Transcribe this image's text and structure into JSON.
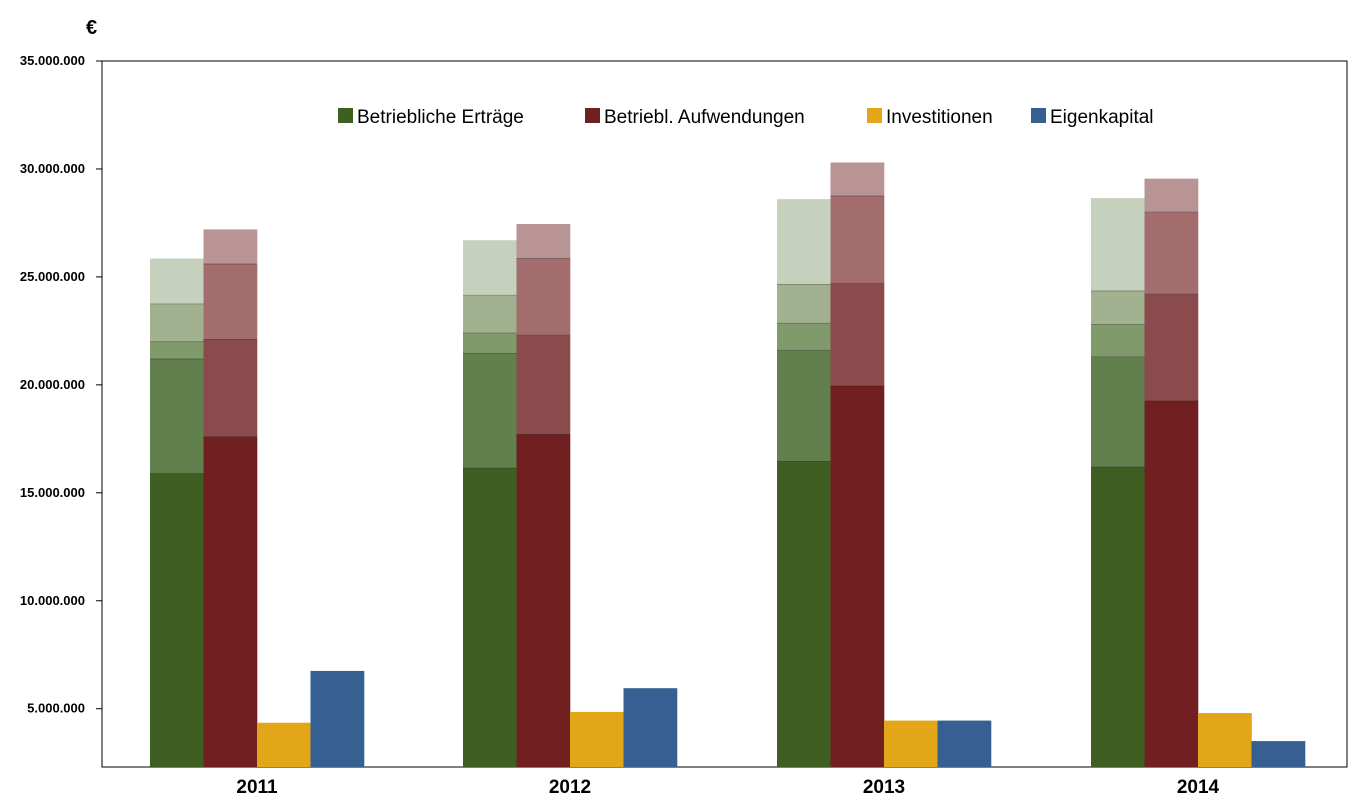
{
  "chart_data": {
    "type": "bar",
    "unit_label": "€",
    "categories": [
      "2011",
      "2012",
      "2013",
      "2014"
    ],
    "ylim": [
      2300000,
      35000000
    ],
    "y_ticks": [
      5000000,
      10000000,
      15000000,
      20000000,
      25000000,
      30000000,
      35000000
    ],
    "y_tick_labels": [
      "5.000.000",
      "10.000.000",
      "15.000.000",
      "20.000.000",
      "25.000.000",
      "30.000.000",
      "35.000.000"
    ],
    "grid": false,
    "legend_position": "top",
    "legend": [
      "Betriebliche Erträge",
      "Betriebl. Aufwendungen",
      "Investitionen",
      "Eigenkapital"
    ],
    "series": [
      {
        "name": "Betriebliche Erträge",
        "color": "#3f5f22",
        "stacked": true,
        "segment_colors": [
          "#3f5f22",
          "#62804d",
          "#819a6c",
          "#a2b18f",
          "#c5d0bd"
        ],
        "values": [
          [
            15900000,
            21200000,
            22000000,
            23750000,
            25850000
          ],
          [
            16150000,
            21450000,
            22400000,
            24150000,
            26700000
          ],
          [
            16450000,
            21600000,
            22850000,
            24650000,
            28600000
          ],
          [
            16200000,
            21300000,
            22800000,
            24350000,
            28650000
          ]
        ]
      },
      {
        "name": "Betriebl. Aufwendungen",
        "color": "#721f22",
        "stacked": true,
        "segment_colors": [
          "#721f22",
          "#8b4a4c",
          "#a36d6e",
          "#b99494"
        ],
        "values": [
          [
            17600000,
            22100000,
            25600000,
            27200000
          ],
          [
            17700000,
            22300000,
            25850000,
            27450000
          ],
          [
            19950000,
            24700000,
            28750000,
            30300000
          ],
          [
            19250000,
            24200000,
            28000000,
            29550000
          ]
        ]
      },
      {
        "name": "Investitionen",
        "color": "#e3a619",
        "values": [
          4350000,
          4850000,
          4450000,
          4800000
        ]
      },
      {
        "name": "Eigenkapital",
        "color": "#366092",
        "values": [
          6750000,
          5950000,
          4450000,
          3500000
        ]
      }
    ]
  }
}
